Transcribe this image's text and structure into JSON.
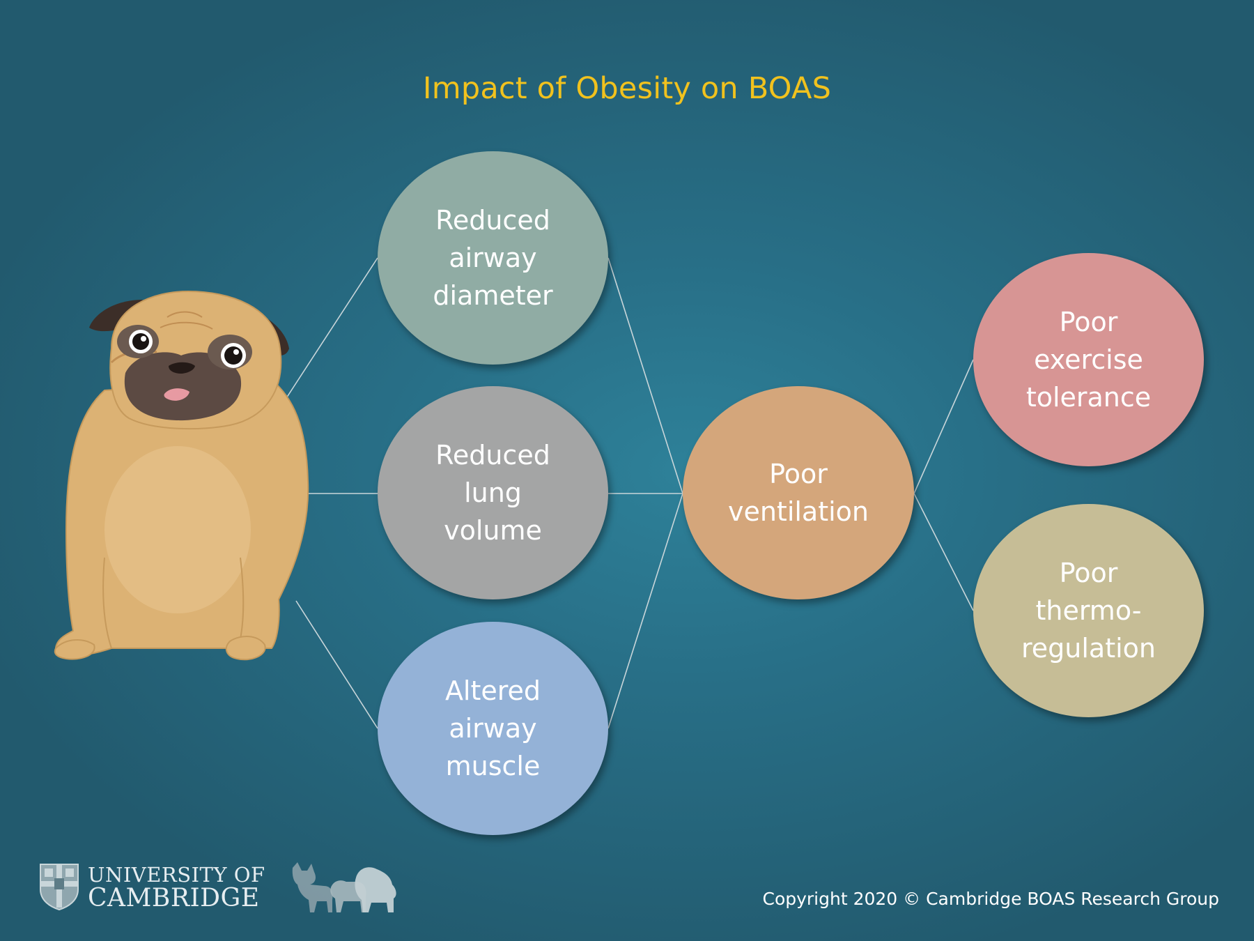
{
  "title": "Impact of Obesity on BOAS",
  "nodes": {
    "airway_diameter": {
      "label": "Reduced\nairway\ndiameter",
      "color": "#90aca4"
    },
    "lung_volume": {
      "label": "Reduced\nlung\nvolume",
      "color": "#a4a5a5"
    },
    "airway_muscle": {
      "label": "Altered\nairway\nmuscle",
      "color": "#94b2d7"
    },
    "ventilation": {
      "label": "Poor\nventilation",
      "color": "#d4a67b"
    },
    "exercise": {
      "label": "Poor\nexercise\ntolerance",
      "color": "#d79594"
    },
    "thermo": {
      "label": "Poor\nthermo-\nregulation",
      "color": "#c6bd96"
    }
  },
  "logo": {
    "line1": "UNIVERSITY OF",
    "line2": "CAMBRIDGE"
  },
  "copyright": "Copyright 2020 © Cambridge BOAS Research Group"
}
